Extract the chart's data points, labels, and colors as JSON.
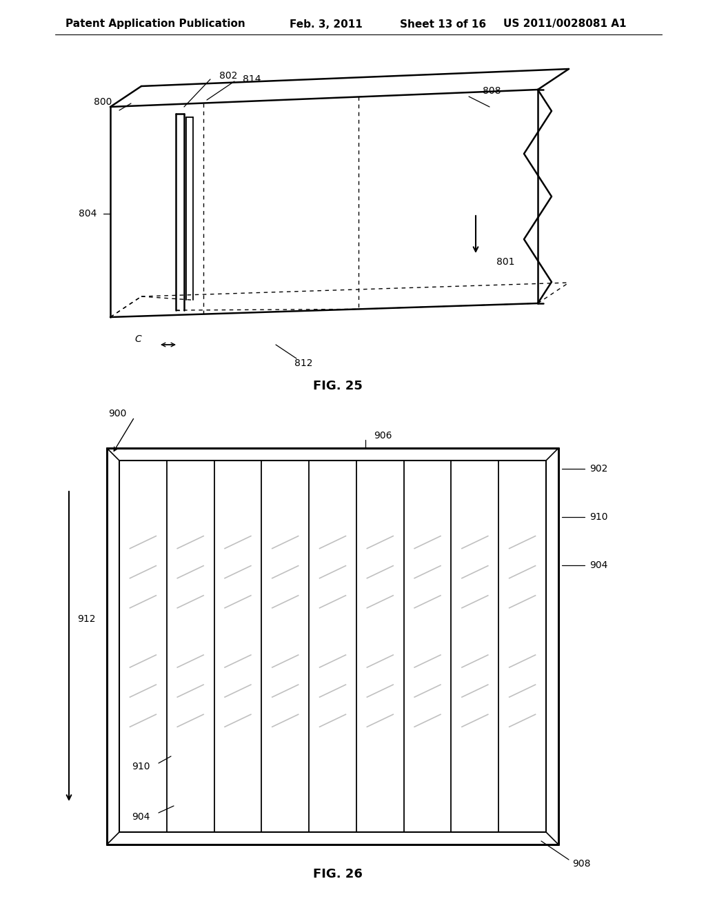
{
  "bg_color": "#ffffff",
  "header_text": "Patent Application Publication",
  "header_date": "Feb. 3, 2011",
  "header_sheet": "Sheet 13 of 16",
  "header_patent": "US 2011/0028081 A1",
  "fig25_label": "FIG. 25",
  "fig26_label": "FIG. 26"
}
